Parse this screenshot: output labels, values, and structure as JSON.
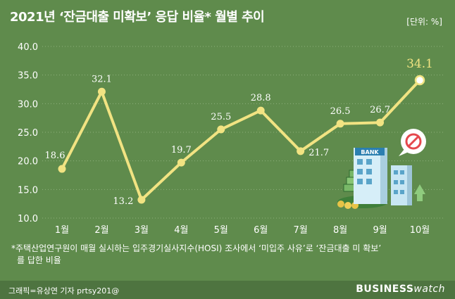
{
  "title": "2021년 ‘잔금대출 미확보’ 응답 비율* 월별 추이",
  "unit": "[단위: %]",
  "footnote_line1": "*주택산업연구원이 매월 실시하는 입주경기실사지수(HOSI) 조사에서 ‘미입주 사유’로 ‘잔금대출 미 확보’",
  "footnote_line2": "를 답한 비율",
  "credit": "그래픽=유상연 기자 prtsy201@",
  "brand": {
    "bold": "BUSINESS",
    "light": "watch"
  },
  "illustration": {
    "bank_sign": "BANK"
  },
  "colors": {
    "background": "#5f8b4c",
    "line": "#f1e382",
    "highlight_label": "#f1e382",
    "bottom_bar": "#4e7440"
  },
  "chart_data": {
    "type": "line",
    "title": "2021년 ‘잔금대출 미확보’ 응답 비율* 월별 추이",
    "categories": [
      "1월",
      "2월",
      "3월",
      "4월",
      "5월",
      "6월",
      "7월",
      "8월",
      "9월",
      "10월"
    ],
    "series": [
      {
        "values": [
          18.6,
          32.1,
          13.2,
          19.7,
          25.5,
          28.8,
          21.7,
          26.5,
          26.7,
          34.1
        ]
      }
    ],
    "data_labels": [
      "18.6",
      "32.1",
      "13.2",
      "19.7",
      "25.5",
      "28.8",
      "21.7",
      "26.5",
      "26.7",
      "34.1"
    ],
    "ylim": [
      10.0,
      40.0
    ],
    "yticks": [
      "10.0",
      "15.0",
      "20.0",
      "25.0",
      "30.0",
      "35.0",
      "40.0"
    ],
    "grid": "horizontal dotted",
    "highlight_index": 9
  }
}
